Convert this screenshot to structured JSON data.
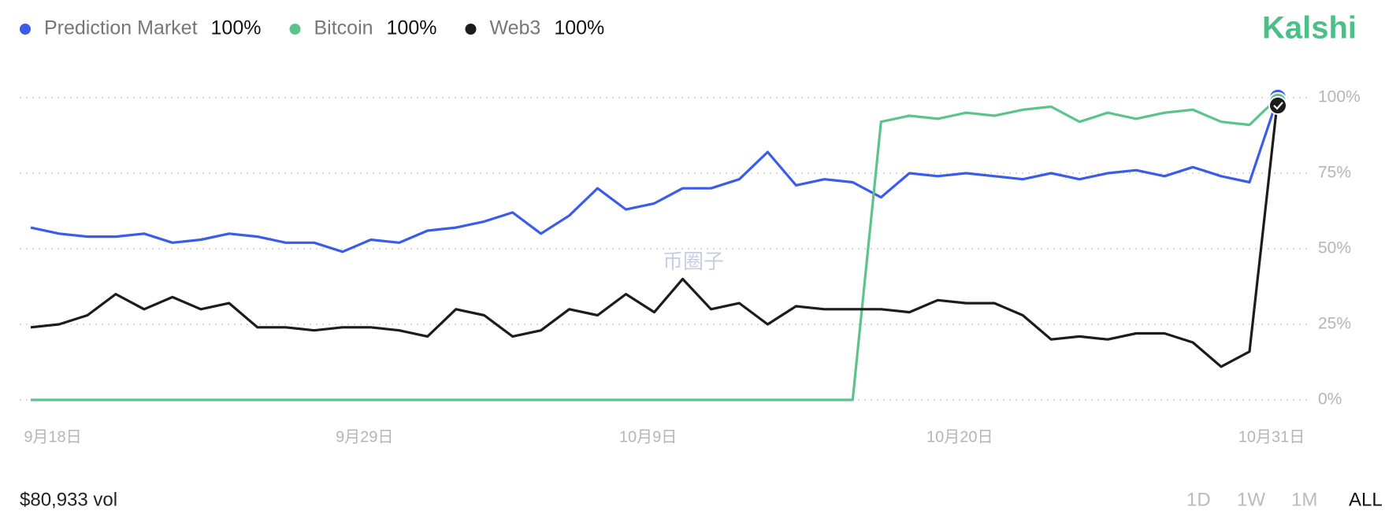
{
  "chart_data": {
    "type": "line",
    "brand": "Kalshi",
    "volume": "$80,933 vol",
    "watermark": "币圈子",
    "ranges": [
      "1D",
      "1W",
      "1M",
      "ALL"
    ],
    "active_range": 3,
    "categories": [
      "9月18日",
      null,
      null,
      null,
      null,
      null,
      null,
      null,
      null,
      null,
      null,
      "9月29日",
      null,
      null,
      null,
      null,
      null,
      null,
      null,
      null,
      null,
      "10月9日",
      null,
      null,
      null,
      null,
      null,
      null,
      null,
      null,
      null,
      null,
      "10月20日",
      null,
      null,
      null,
      null,
      null,
      null,
      null,
      null,
      null,
      null,
      "10月31日",
      null
    ],
    "ylim": [
      0,
      100
    ],
    "yticks": [
      {
        "value": 0,
        "label": "0%"
      },
      {
        "value": 25,
        "label": "25%"
      },
      {
        "value": 50,
        "label": "50%"
      },
      {
        "value": 75,
        "label": "75%"
      },
      {
        "value": 100,
        "label": "100%"
      }
    ],
    "grid": true,
    "series": [
      {
        "name": "Prediction Market",
        "color": "#3a5ce9",
        "current": "100%",
        "values": [
          57,
          55,
          54,
          54,
          55,
          52,
          53,
          55,
          54,
          52,
          52,
          49,
          53,
          52,
          56,
          57,
          59,
          62,
          55,
          61,
          70,
          63,
          65,
          70,
          70,
          73,
          82,
          71,
          73,
          72,
          67,
          75,
          74,
          75,
          74,
          73,
          75,
          73,
          75,
          76,
          74,
          77,
          74,
          72,
          100
        ]
      },
      {
        "name": "Bitcoin",
        "color": "#5cc38c",
        "current": "100%",
        "values": [
          0,
          0,
          0,
          0,
          0,
          0,
          0,
          0,
          0,
          0,
          0,
          0,
          0,
          0,
          0,
          0,
          0,
          0,
          0,
          0,
          0,
          0,
          0,
          0,
          0,
          0,
          0,
          0,
          0,
          0,
          92,
          94,
          93,
          95,
          94,
          96,
          97,
          92,
          95,
          93,
          95,
          96,
          92,
          91,
          100
        ]
      },
      {
        "name": "Web3",
        "color": "#1c1c1c",
        "current": "100%",
        "values": [
          24,
          25,
          28,
          35,
          30,
          34,
          30,
          32,
          24,
          24,
          23,
          24,
          24,
          23,
          21,
          30,
          28,
          21,
          23,
          30,
          28,
          35,
          29,
          40,
          30,
          32,
          25,
          31,
          30,
          30,
          30,
          29,
          33,
          32,
          32,
          28,
          20,
          21,
          20,
          22,
          22,
          19,
          11,
          16,
          100
        ]
      }
    ]
  }
}
